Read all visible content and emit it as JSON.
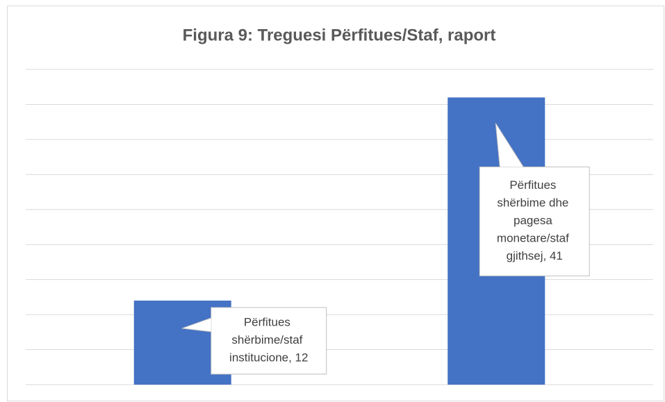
{
  "chart_data": {
    "type": "bar",
    "title": "Figura 9: Treguesi Përfitues/Staf, raport",
    "values": [
      12,
      41
    ],
    "value_labels": [
      "Përfitues shërbime/staf institucione, 12",
      "Përfitues shërbime dhe pagesa monetare/staf gjithsej, 41"
    ],
    "color": "#4472c4",
    "ylim": [
      0,
      45
    ],
    "yticks": [
      0,
      5,
      10,
      15,
      20,
      25,
      30,
      35,
      40,
      45
    ],
    "grid": true
  }
}
